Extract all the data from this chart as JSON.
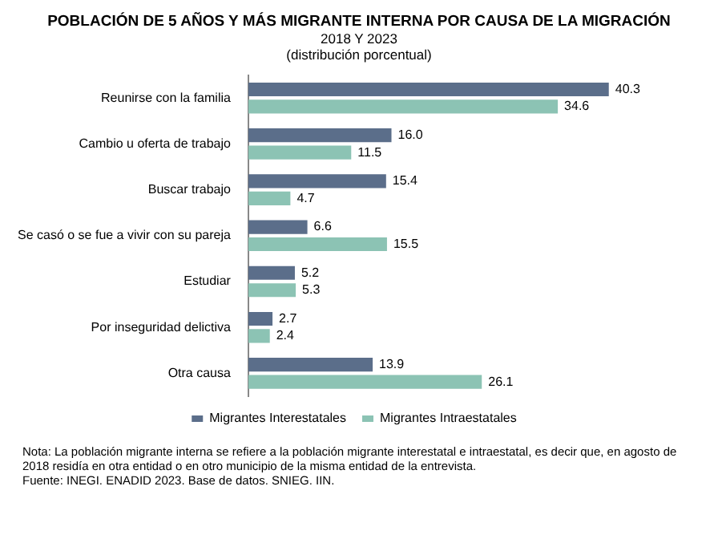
{
  "chart_data": {
    "type": "bar",
    "orientation": "horizontal",
    "title": "POBLACIÓN DE 5 AÑOS Y MÁS MIGRANTE INTERNA POR CAUSA DE LA MIGRACIÓN",
    "subtitle": "2018 Y 2023\n(distribución porcentual)",
    "categories": [
      "Reunirse con la familia",
      "Cambio u oferta de trabajo",
      "Buscar trabajo",
      "Se casó o se fue a vivir con su pareja",
      "Estudiar",
      "Por inseguridad delictiva",
      "Otra causa"
    ],
    "series": [
      {
        "name": "Migrantes Interestatales",
        "color": "#5b6e8a",
        "values": [
          40.3,
          16.0,
          15.4,
          6.6,
          5.2,
          2.7,
          13.9
        ],
        "value_labels": [
          "40.3",
          "16.0",
          "15.4",
          "6.6",
          "5.2",
          "2.7",
          "13.9"
        ]
      },
      {
        "name": "Migrantes Intraestatales",
        "color": "#8cc3b4",
        "values": [
          34.6,
          11.5,
          4.7,
          15.5,
          5.3,
          2.4,
          26.1
        ],
        "value_labels": [
          "34.6",
          "11.5",
          "4.7",
          "15.5",
          "5.3",
          "2.4",
          "26.1"
        ]
      }
    ],
    "legend": "bottom",
    "annotations": [
      "Nota: La población migrante interna se refiere a la población migrante interestatal e intraestatal, es decir que, en agosto de 2018 residía en otra entidad o en otro municipio de la misma entidad de la entrevista.",
      "Fuente: INEGI. ENADID 2023. Base de datos. SNIEG. IIN."
    ]
  }
}
